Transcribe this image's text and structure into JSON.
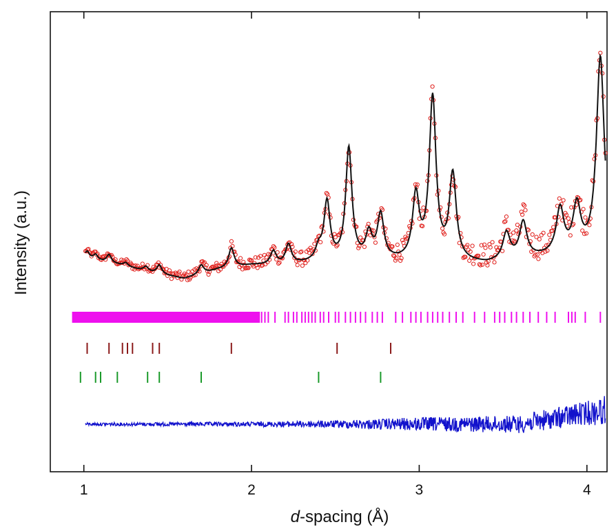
{
  "chart_data": {
    "type": "scatter",
    "xlabel_prefix": "d",
    "xlabel_suffix": "-spacing (Å)",
    "ylabel": "Intensity (a.u.)",
    "xlim": [
      0.8,
      4.12
    ],
    "x_ticks": [
      1,
      2,
      3,
      4
    ],
    "x_tick_labels": [
      "1",
      "2",
      "3",
      "4"
    ],
    "y_ticks_shown": false,
    "grid": false,
    "colors": {
      "observed": "#e0201c",
      "calculated": "#111111",
      "difference": "#1212cc",
      "phase1_ticks": "#ee10ee",
      "phase2_ticks": "#8b1a1a",
      "phase3_ticks": "#1a9a2a"
    },
    "background_profile": [
      [
        1.0,
        3.5
      ],
      [
        1.2,
        2.8
      ],
      [
        1.4,
        1.9
      ],
      [
        1.6,
        1.2
      ],
      [
        1.8,
        2.2
      ],
      [
        2.0,
        2.7
      ],
      [
        2.2,
        2.7
      ],
      [
        2.4,
        3.0
      ],
      [
        2.6,
        3.1
      ],
      [
        2.8,
        3.1
      ],
      [
        3.0,
        3.1
      ],
      [
        3.2,
        3.0
      ],
      [
        3.4,
        2.8
      ],
      [
        3.6,
        3.3
      ],
      [
        3.8,
        3.7
      ],
      [
        4.0,
        3.8
      ],
      [
        4.12,
        3.8
      ]
    ],
    "peaks": [
      {
        "d": 1.02,
        "height": 0.8
      },
      {
        "d": 1.07,
        "height": 0.6
      },
      {
        "d": 1.15,
        "height": 0.9
      },
      {
        "d": 1.25,
        "height": 0.4
      },
      {
        "d": 1.37,
        "height": 0.5
      },
      {
        "d": 1.45,
        "height": 1.0
      },
      {
        "d": 1.7,
        "height": 1.0
      },
      {
        "d": 1.88,
        "height": 2.2
      },
      {
        "d": 2.13,
        "height": 1.5
      },
      {
        "d": 2.22,
        "height": 2.2
      },
      {
        "d": 2.4,
        "height": 1.3
      },
      {
        "d": 2.45,
        "height": 6.5
      },
      {
        "d": 2.58,
        "height": 12.5
      },
      {
        "d": 2.7,
        "height": 2.8
      },
      {
        "d": 2.77,
        "height": 5.0
      },
      {
        "d": 2.98,
        "height": 7.0
      },
      {
        "d": 3.08,
        "height": 18.0
      },
      {
        "d": 3.2,
        "height": 9.5
      },
      {
        "d": 3.52,
        "height": 3.0
      },
      {
        "d": 3.62,
        "height": 4.0
      },
      {
        "d": 3.84,
        "height": 5.0
      },
      {
        "d": 3.94,
        "height": 5.2
      },
      {
        "d": 4.08,
        "height": 22.0
      }
    ],
    "observed_offset": 0.5,
    "phase1_reflections_note": "dense continuous reflection markers from 0.93 to ~2.05 then discrete",
    "phase1_reflections": [
      2.06,
      2.08,
      2.1,
      2.14,
      2.2,
      2.22,
      2.25,
      2.27,
      2.3,
      2.32,
      2.34,
      2.36,
      2.38,
      2.41,
      2.43,
      2.46,
      2.5,
      2.52,
      2.56,
      2.59,
      2.62,
      2.65,
      2.68,
      2.72,
      2.75,
      2.78,
      2.86,
      2.9,
      2.95,
      2.98,
      3.01,
      3.05,
      3.08,
      3.11,
      3.14,
      3.18,
      3.22,
      3.26,
      3.33,
      3.39,
      3.45,
      3.48,
      3.51,
      3.55,
      3.58,
      3.62,
      3.66,
      3.71,
      3.76,
      3.81,
      3.89,
      3.91,
      3.93,
      3.99,
      4.08
    ],
    "phase1_dense_range": [
      0.93,
      2.05
    ],
    "phase2_reflections": [
      1.02,
      1.15,
      1.23,
      1.26,
      1.29,
      1.41,
      1.45,
      1.88,
      2.51,
      2.83
    ],
    "phase3_reflections": [
      0.98,
      1.07,
      1.1,
      1.2,
      1.38,
      1.45,
      1.7,
      2.4,
      2.77
    ],
    "difference_profile_note": "residual noise amplitude grows with d",
    "difference_envelope": [
      [
        1.0,
        0.4
      ],
      [
        2.0,
        0.6
      ],
      [
        2.5,
        1.0
      ],
      [
        3.0,
        1.8
      ],
      [
        3.5,
        2.2
      ],
      [
        4.0,
        3.2
      ],
      [
        4.12,
        4.0
      ]
    ]
  }
}
